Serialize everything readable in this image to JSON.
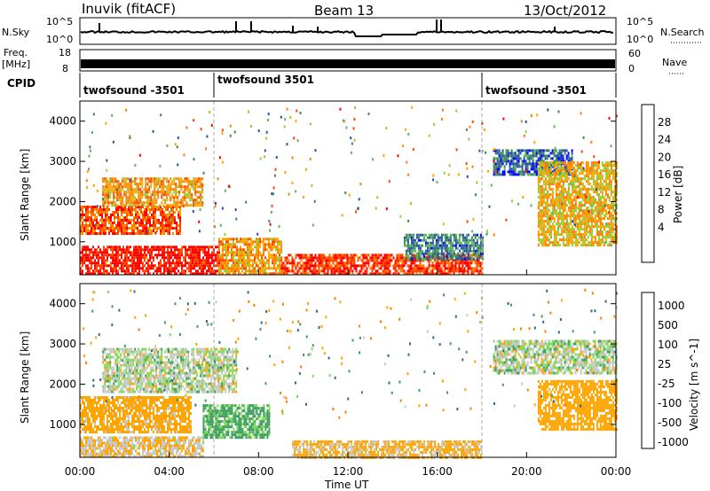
{
  "header": {
    "station": "Inuvik (fitACF)",
    "beam": "Beam 13",
    "date": "13/Oct/2012"
  },
  "summary": {
    "nsky_label": "N.Sky",
    "nsearch_label": "N.Search",
    "nsky_ticks": [
      "10^5",
      "10^0"
    ],
    "nsearch_ticks": [
      "10^5",
      "10^0"
    ],
    "freq_label": "Freq.",
    "freq_unit": "[MHz]",
    "freq_ticks": [
      "18",
      "8"
    ],
    "nave_label": "Nave",
    "nave_ticks": [
      "60",
      "0"
    ],
    "cpid_label": "CPID",
    "cpid_segments": [
      {
        "label": "twofsound -3501",
        "start_hour": 0
      },
      {
        "label": "twofsound 3501",
        "start_hour": 6
      },
      {
        "label": "twofsound -3501",
        "start_hour": 18
      }
    ]
  },
  "colors": {
    "power_scale": [
      "#0000ff",
      "#2a4fb0",
      "#3b8a5a",
      "#5cb85c",
      "#9acd32",
      "#ffa500",
      "#ff7f00",
      "#ff4500",
      "#ff0000"
    ],
    "velocity_scale": [
      "#3a5fcd",
      "#2e6b8a",
      "#3c9e5f",
      "#7ed957",
      "#c8c8c8",
      "#c8c8c8",
      "#ffa500",
      "#ff7f00",
      "#ff4500",
      "#ff0000"
    ]
  },
  "chart_data": [
    {
      "type": "heatmap",
      "title": "",
      "quantity": "Power",
      "xlabel": "",
      "ylabel": "Slant Range [km]",
      "colorbar_label": "Power [dB]",
      "colorbar_ticks": [
        "28",
        "24",
        "20",
        "16",
        "12",
        "8",
        "4"
      ],
      "xlim": [
        0,
        24
      ],
      "ylim": [
        180,
        4500
      ],
      "y_ticks": [
        1000,
        2000,
        3000,
        4000
      ],
      "x_ticks": [
        0,
        4,
        8,
        12,
        16,
        20,
        24
      ],
      "x_tick_labels": [
        "00:00",
        "04:00",
        "08:00",
        "12:00",
        "16:00",
        "20:00",
        "00:00"
      ],
      "regions": [
        {
          "t0": 0.0,
          "t1": 6.2,
          "r0": 200,
          "r1": 900,
          "value": 28
        },
        {
          "t0": 0.0,
          "t1": 4.5,
          "r0": 1200,
          "r1": 1900,
          "value": 24
        },
        {
          "t0": 1.0,
          "t1": 5.5,
          "r0": 1900,
          "r1": 2600,
          "value": 20
        },
        {
          "t0": 6.2,
          "t1": 9.0,
          "r0": 200,
          "r1": 1100,
          "value": 20
        },
        {
          "t0": 9.0,
          "t1": 18.0,
          "r0": 200,
          "r1": 700,
          "value": 26
        },
        {
          "t0": 14.5,
          "t1": 18.0,
          "r0": 600,
          "r1": 1200,
          "value": 8
        },
        {
          "t0": 18.5,
          "t1": 22.0,
          "r0": 2700,
          "r1": 3300,
          "value": 6
        },
        {
          "t0": 20.5,
          "t1": 24.0,
          "r0": 900,
          "r1": 3000,
          "value": 18
        }
      ]
    },
    {
      "type": "heatmap",
      "title": "",
      "quantity": "Velocity",
      "xlabel": "Time UT",
      "ylabel": "Slant Range [km]",
      "colorbar_label": "Velocity [m s^-1]",
      "colorbar_ticks": [
        "1000",
        "500",
        "100",
        "25",
        "-25",
        "-100",
        "-500",
        "-1000"
      ],
      "xlim": [
        0,
        24
      ],
      "ylim": [
        180,
        4500
      ],
      "y_ticks": [
        1000,
        2000,
        3000,
        4000
      ],
      "x_ticks": [
        0,
        4,
        8,
        12,
        16,
        20,
        24
      ],
      "x_tick_labels": [
        "00:00",
        "04:00",
        "08:00",
        "12:00",
        "16:00",
        "20:00",
        "00:00"
      ],
      "regions": [
        {
          "t0": 0.0,
          "t1": 5.5,
          "r0": 200,
          "r1": 700,
          "value": -100
        },
        {
          "t0": 0.0,
          "t1": 5.0,
          "r0": 800,
          "r1": 1700,
          "value": -200
        },
        {
          "t0": 1.0,
          "t1": 7.0,
          "r0": 1800,
          "r1": 2900,
          "value": 0
        },
        {
          "t0": 5.5,
          "t1": 8.5,
          "r0": 700,
          "r1": 1500,
          "value": 150
        },
        {
          "t0": 9.5,
          "t1": 18.0,
          "r0": 200,
          "r1": 600,
          "value": -150
        },
        {
          "t0": 18.5,
          "t1": 24.0,
          "r0": 2300,
          "r1": 3100,
          "value": 0
        },
        {
          "t0": 20.5,
          "t1": 24.0,
          "r0": 900,
          "r1": 2100,
          "value": -300
        }
      ]
    }
  ]
}
